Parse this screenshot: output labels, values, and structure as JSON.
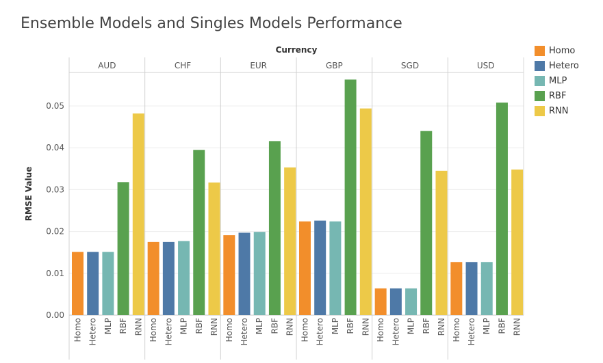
{
  "chart_data": {
    "type": "bar",
    "title": "Ensemble Models and Singles Models Performance",
    "column_header": "Currency",
    "ylabel": "RMSE Value",
    "ylim": [
      0,
      0.058
    ],
    "yticks": [
      "0.00",
      "0.01",
      "0.02",
      "0.03",
      "0.04",
      "0.05"
    ],
    "ytick_values": [
      0,
      0.01,
      0.02,
      0.03,
      0.04,
      0.05
    ],
    "grid": true,
    "legend_position": "top-right",
    "groups": [
      "AUD",
      "CHF",
      "EUR",
      "GBP",
      "SGD",
      "USD"
    ],
    "categories": [
      "Homo",
      "Hetero",
      "MLP",
      "RBF",
      "RNN"
    ],
    "colors": [
      "#f28e2b",
      "#4e79a7",
      "#76b7b2",
      "#59a14f",
      "#edc948"
    ],
    "series": [
      {
        "group": "AUD",
        "values": [
          0.0151,
          0.0151,
          0.0151,
          0.0318,
          0.0482
        ]
      },
      {
        "group": "CHF",
        "values": [
          0.0175,
          0.0175,
          0.0177,
          0.0395,
          0.0317
        ]
      },
      {
        "group": "EUR",
        "values": [
          0.0191,
          0.0197,
          0.0199,
          0.0416,
          0.0353
        ]
      },
      {
        "group": "GBP",
        "values": [
          0.0224,
          0.0226,
          0.0224,
          0.0563,
          0.0494
        ]
      },
      {
        "group": "SGD",
        "values": [
          0.0064,
          0.0064,
          0.0064,
          0.044,
          0.0345
        ]
      },
      {
        "group": "USD",
        "values": [
          0.0127,
          0.0127,
          0.0127,
          0.0508,
          0.0348
        ]
      }
    ]
  },
  "legend": {
    "items": [
      {
        "label": "Homo",
        "color": "#f28e2b"
      },
      {
        "label": "Hetero",
        "color": "#4e79a7"
      },
      {
        "label": "MLP",
        "color": "#76b7b2"
      },
      {
        "label": "RBF",
        "color": "#59a14f"
      },
      {
        "label": "RNN",
        "color": "#edc948"
      }
    ]
  }
}
